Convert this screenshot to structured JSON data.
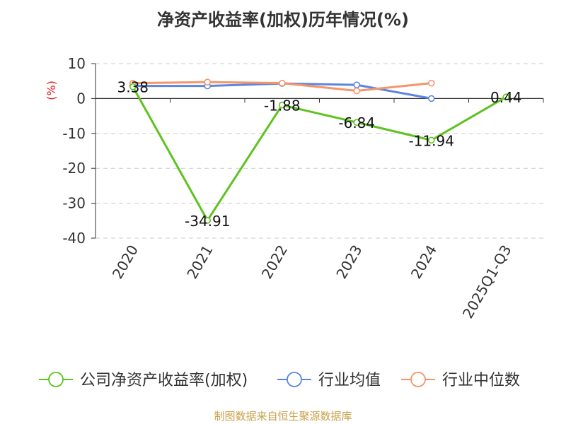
{
  "chart_data": {
    "type": "line",
    "title": "净资产收益率(加权)历年情况(%)",
    "ylabel": "(%)",
    "xlabel": "",
    "categories": [
      "2020",
      "2021",
      "2022",
      "2023",
      "2024",
      "2025Q1-Q3"
    ],
    "ylim": [
      -40,
      10
    ],
    "yticks": [
      10,
      0,
      -10,
      -20,
      -30,
      -40
    ],
    "grid": true,
    "legend_position": "bottom",
    "series": [
      {
        "name": "公司净资产收益率(加权)",
        "color": "#5ec21f",
        "values": [
          3.38,
          -34.91,
          -1.88,
          -6.84,
          -11.94,
          0.44
        ],
        "labels": [
          "3.38",
          "-34.91",
          "-1.88",
          "-6.84",
          "-11.94",
          "0.44"
        ]
      },
      {
        "name": "行业均值",
        "color": "#5b86e0",
        "values": [
          3.6,
          3.6,
          4.3,
          3.9,
          0.0,
          null
        ]
      },
      {
        "name": "行业中位数",
        "color": "#f4956a",
        "values": [
          4.4,
          4.7,
          4.4,
          2.2,
          4.4,
          null
        ]
      }
    ]
  },
  "footer": "制图数据来自恒生聚源数据库"
}
